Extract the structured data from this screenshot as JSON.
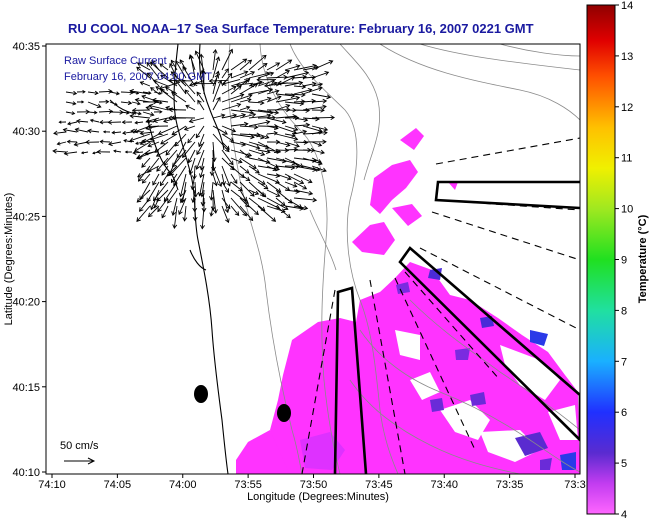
{
  "title": "RU COOL  NOAA–17  Sea Surface Temperature:  February 16, 2007 0221 GMT",
  "annotation": {
    "line1": "Raw Surface Current",
    "line2": "February 16, 2007 04:00 GMT"
  },
  "scale_label": "50 cm/s",
  "axes": {
    "xlabel": "Longitude (Degrees:Minutes)",
    "ylabel": "Latitude (Degrees:Minutes)",
    "x_ticks": [
      "74:10",
      "74:05",
      "74:00",
      "73:55",
      "73:50",
      "73:45",
      "73:40",
      "73:35",
      "73:3"
    ],
    "y_ticks": [
      "40:35",
      "40:30",
      "40:25",
      "40:20",
      "40:15",
      "40:10"
    ]
  },
  "colorbar": {
    "label": "Temperature (°C)",
    "ticks": [
      "14",
      "13",
      "12",
      "11",
      "10",
      "9",
      "8",
      "7",
      "6",
      "5",
      "4"
    ],
    "min": 4,
    "max": 14
  },
  "colors": {
    "title": "#1a1aa0",
    "sst_dominant": "#ff33ff",
    "sst_cool": "#6a2bd8"
  },
  "markers": {
    "count": 2,
    "shape": "black ellipse"
  }
}
